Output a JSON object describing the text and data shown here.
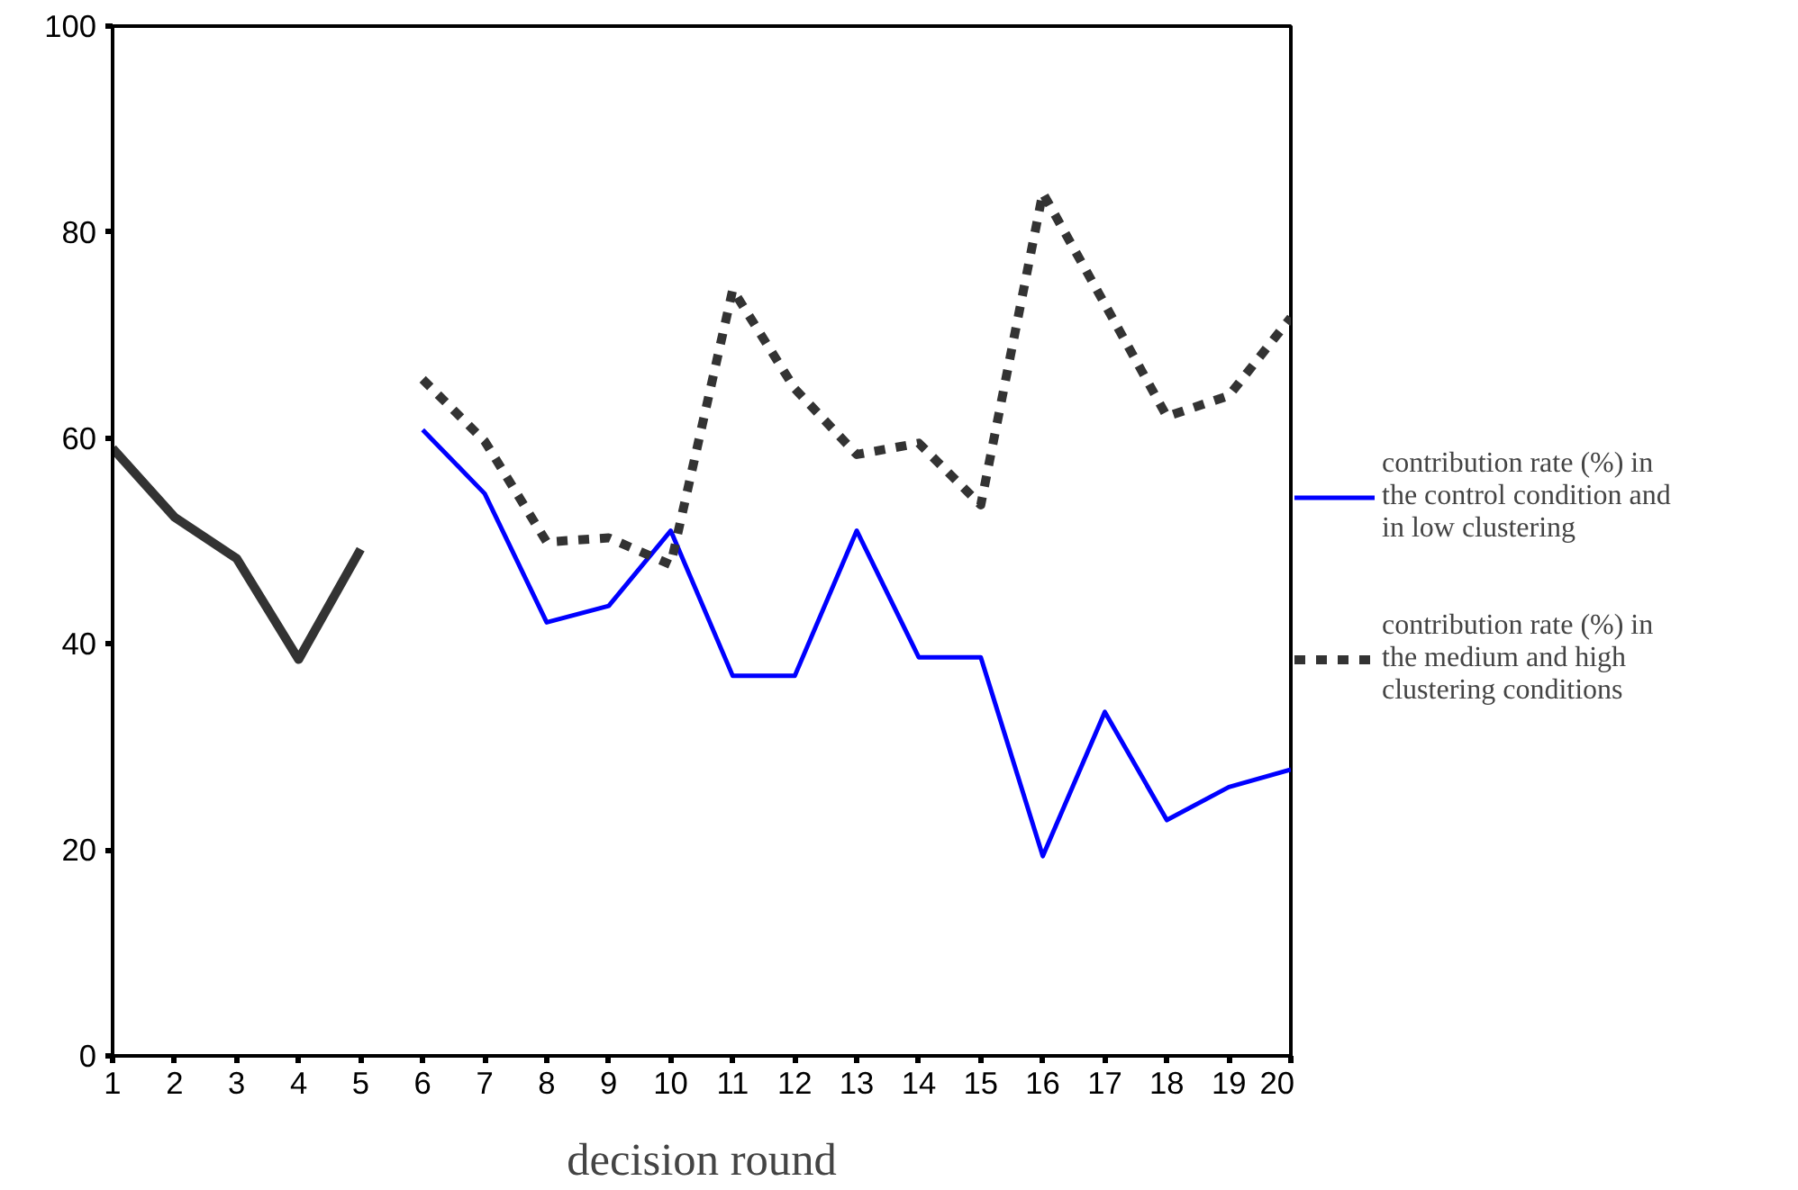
{
  "chart_data": {
    "type": "line",
    "xlabel": "decision round",
    "x": [
      1,
      2,
      3,
      4,
      5,
      6,
      7,
      8,
      9,
      10,
      11,
      12,
      13,
      14,
      15,
      16,
      17,
      18,
      19,
      20
    ],
    "xlim": [
      1,
      20
    ],
    "xticks": [
      1,
      2,
      3,
      4,
      5,
      6,
      7,
      8,
      9,
      10,
      11,
      12,
      13,
      14,
      15,
      16,
      17,
      18,
      19,
      20
    ],
    "ylim": [
      0,
      100
    ],
    "yticks": [
      0,
      20,
      40,
      60,
      80,
      100
    ],
    "grid": false,
    "legend": "right",
    "series": [
      {
        "color": "#333333",
        "line_style": "solid",
        "values": [
          59.0,
          52.3,
          48.3,
          38.5,
          49.2,
          null,
          null,
          null,
          null,
          null,
          null,
          null,
          null,
          null,
          null,
          null,
          null,
          null,
          null,
          null
        ]
      },
      {
        "name": "contribution rate (%) in the control condition and in low clustering",
        "color": "#0000ff",
        "line_style": "solid",
        "values": [
          null,
          null,
          null,
          null,
          null,
          60.8,
          54.6,
          42.1,
          43.7,
          51.0,
          36.9,
          36.9,
          51.0,
          38.7,
          38.7,
          19.4,
          33.4,
          22.9,
          26.1,
          27.8
        ]
      },
      {
        "name": "contribution rate (%) in the medium and high clustering conditions",
        "color": "#333333",
        "line_style": "dotted",
        "values": [
          null,
          null,
          null,
          null,
          null,
          65.7,
          59.7,
          49.9,
          50.3,
          47.7,
          74.4,
          64.8,
          58.4,
          59.5,
          53.5,
          83.8,
          73.0,
          62.1,
          64.1,
          71.7
        ]
      }
    ]
  }
}
